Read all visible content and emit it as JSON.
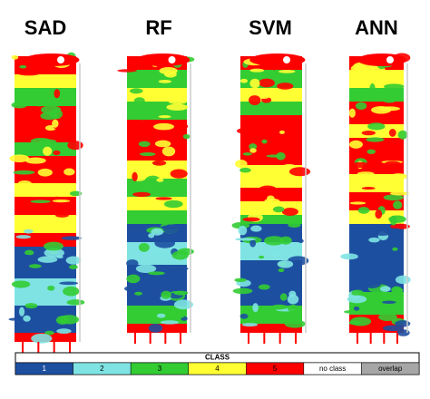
{
  "panels": [
    {
      "title": "SAD"
    },
    {
      "title": "RF"
    },
    {
      "title": "SVM"
    },
    {
      "title": "ANN"
    }
  ],
  "legend": {
    "title": "CLASS",
    "items": [
      {
        "label": "1",
        "color": "#1d4fa0"
      },
      {
        "label": "2",
        "color": "#7fe3e3"
      },
      {
        "label": "3",
        "color": "#33cc33"
      },
      {
        "label": "4",
        "color": "#ffff33"
      },
      {
        "label": "5",
        "color": "#ff0000"
      },
      {
        "label": "no class",
        "color": "#ffffff"
      },
      {
        "label": "overlap",
        "color": "#a6a6a6"
      }
    ]
  }
}
